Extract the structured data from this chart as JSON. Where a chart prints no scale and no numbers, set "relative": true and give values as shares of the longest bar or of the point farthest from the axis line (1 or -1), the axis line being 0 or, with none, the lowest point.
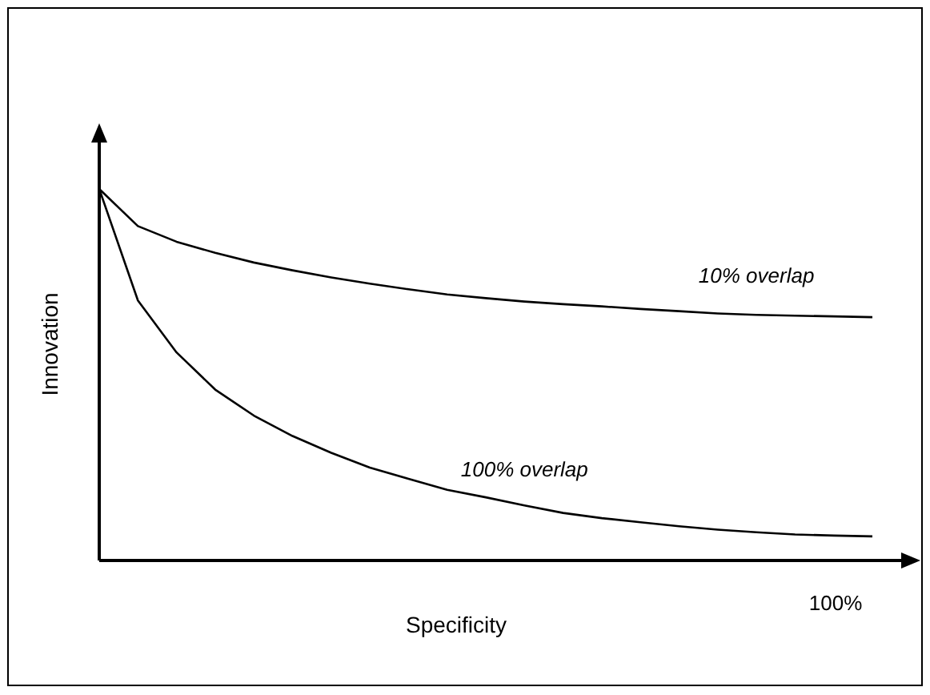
{
  "chart_data": {
    "type": "line",
    "relative": true,
    "xlabel": "Specificity",
    "ylabel": "Innovation",
    "annotations": [
      "100%"
    ],
    "marker": "none",
    "line_style": "solid",
    "categories": [
      null,
      null,
      null,
      null,
      null,
      null,
      null,
      null,
      null,
      null,
      null,
      null,
      null,
      null,
      null,
      null,
      null,
      null,
      null,
      null,
      null
    ],
    "series": [
      {
        "name": "10% overlap",
        "color": "#000000",
        "values": [
          1,
          0.9,
          0.858,
          0.828,
          0.802,
          0.781,
          0.762,
          0.745,
          0.73,
          0.716,
          0.706,
          0.697,
          0.69,
          0.684,
          0.677,
          0.671,
          0.665,
          0.661,
          0.659,
          0.657,
          0.655
        ]
      },
      {
        "name": "100% overlap",
        "color": "#000000",
        "values": [
          1,
          0.7,
          0.56,
          0.46,
          0.39,
          0.335,
          0.29,
          0.25,
          0.22,
          0.19,
          0.17,
          0.148,
          0.128,
          0.114,
          0.103,
          0.092,
          0.083,
          0.076,
          0.07,
          0.067,
          0.065
        ]
      }
    ]
  }
}
